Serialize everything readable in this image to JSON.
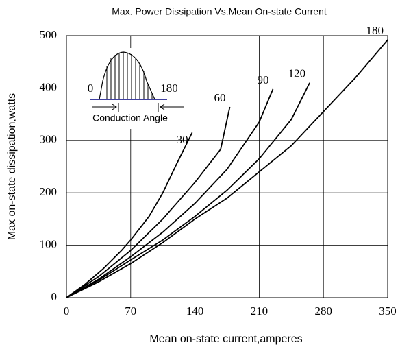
{
  "chart_data": {
    "type": "line",
    "title": "Max. Power Dissipation Vs.Mean On-state Current",
    "x_label": "Mean on-state current,amperes",
    "y_label": "Max on-state dissipation,watts",
    "xlim": [
      0,
      350
    ],
    "xticks": [
      0,
      70,
      140,
      210,
      280,
      350
    ],
    "ylim": [
      0,
      500
    ],
    "yticks": [
      0,
      100,
      200,
      300,
      400,
      500
    ],
    "grid": true,
    "series": [
      {
        "name": "30",
        "color": "#000000",
        "x": [
          0,
          20,
          40,
          60,
          70,
          90,
          105,
          120,
          137
        ],
        "values": [
          0,
          25,
          55,
          90,
          110,
          155,
          200,
          255,
          315
        ]
      },
      {
        "name": "60",
        "color": "#000000",
        "x": [
          0,
          35,
          70,
          105,
          140,
          168,
          178
        ],
        "values": [
          0,
          40,
          90,
          150,
          220,
          283,
          364
        ]
      },
      {
        "name": "90",
        "color": "#000000",
        "x": [
          0,
          35,
          70,
          105,
          140,
          175,
          210,
          225
        ],
        "values": [
          0,
          35,
          78,
          125,
          180,
          245,
          335,
          398
        ]
      },
      {
        "name": "120",
        "color": "#000000",
        "x": [
          0,
          35,
          70,
          105,
          140,
          175,
          210,
          245,
          265
        ],
        "values": [
          0,
          33,
          72,
          110,
          155,
          205,
          265,
          340,
          410
        ]
      },
      {
        "name": "180",
        "color": "#000000",
        "x": [
          0,
          35,
          70,
          105,
          140,
          175,
          210,
          245,
          280,
          315,
          350
        ],
        "values": [
          0,
          30,
          65,
          105,
          150,
          190,
          240,
          290,
          355,
          420,
          492
        ]
      }
    ],
    "inset": {
      "start_label": "0",
      "end_label": "180",
      "caption": "Conduction Angle"
    }
  }
}
